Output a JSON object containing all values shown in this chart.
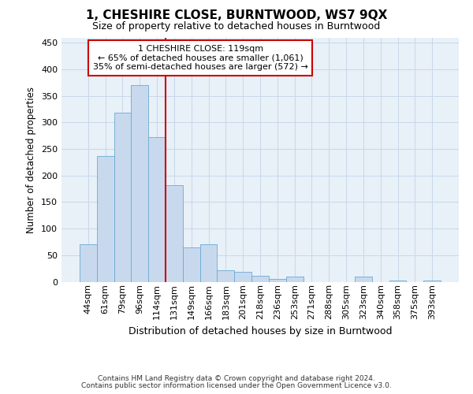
{
  "title": "1, CHESHIRE CLOSE, BURNTWOOD, WS7 9QX",
  "subtitle": "Size of property relative to detached houses in Burntwood",
  "xlabel": "Distribution of detached houses by size in Burntwood",
  "ylabel": "Number of detached properties",
  "categories": [
    "44sqm",
    "61sqm",
    "79sqm",
    "96sqm",
    "114sqm",
    "131sqm",
    "149sqm",
    "166sqm",
    "183sqm",
    "201sqm",
    "218sqm",
    "236sqm",
    "253sqm",
    "271sqm",
    "288sqm",
    "305sqm",
    "323sqm",
    "340sqm",
    "358sqm",
    "375sqm",
    "393sqm"
  ],
  "values": [
    71,
    236,
    318,
    370,
    272,
    182,
    65,
    70,
    22,
    19,
    11,
    5,
    10,
    0,
    0,
    0,
    10,
    0,
    2,
    0,
    2
  ],
  "bar_color": "#c8d9ee",
  "bar_edge_color": "#6aaad4",
  "redline_index": 4,
  "annotation_line1": "1 CHESHIRE CLOSE: 119sqm",
  "annotation_line2": "← 65% of detached houses are smaller (1,061)",
  "annotation_line3": "35% of semi-detached houses are larger (572) →",
  "annotation_box_color": "#ffffff",
  "annotation_box_edge": "#cc0000",
  "redline_color": "#cc0000",
  "ylim": [
    0,
    460
  ],
  "yticks": [
    0,
    50,
    100,
    150,
    200,
    250,
    300,
    350,
    400,
    450
  ],
  "grid_color": "#c8d8ea",
  "background_color": "#e8f0f8",
  "title_fontsize": 11,
  "subtitle_fontsize": 9,
  "ylabel_fontsize": 8.5,
  "xlabel_fontsize": 9,
  "tick_fontsize": 8,
  "footer1": "Contains HM Land Registry data © Crown copyright and database right 2024.",
  "footer2": "Contains public sector information licensed under the Open Government Licence v3.0."
}
